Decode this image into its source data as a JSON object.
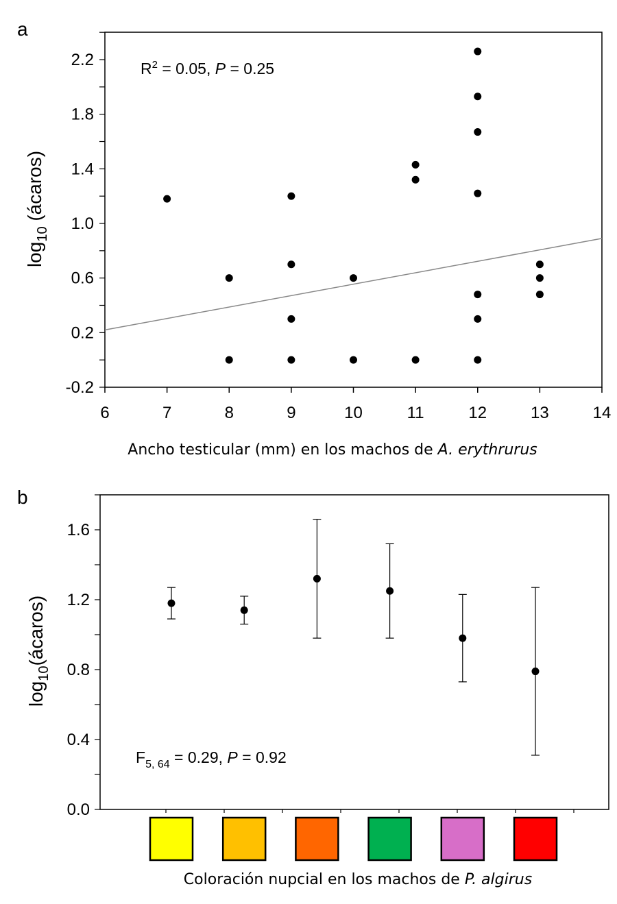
{
  "chart_data": [
    {
      "type": "scatter",
      "panel_label": "a",
      "xlabel": "Ancho testicular (mm) en los machos de ",
      "xlabel_italic": "A. erythrurus",
      "ylabel_main": "log",
      "ylabel_sub": "10",
      "ylabel_rest": " (ácaros)",
      "xlim": [
        6,
        14
      ],
      "ylim": [
        -0.2,
        2.4
      ],
      "xticks": [
        6,
        7,
        8,
        9,
        10,
        11,
        12,
        13,
        14
      ],
      "yticks": [
        "-0.2",
        "0.2",
        "0.6",
        "1.0",
        "1.4",
        "1.8",
        "2.2"
      ],
      "annotation": {
        "r2_prefix": "R",
        "r2_sup": "2",
        "r2_text": " = 0.05, ",
        "p_italic": "P",
        "p_text": " = 0.25"
      },
      "points": [
        [
          7,
          1.18
        ],
        [
          8,
          0.6
        ],
        [
          8,
          0.0
        ],
        [
          9,
          1.2
        ],
        [
          9,
          0.7
        ],
        [
          9,
          0.3
        ],
        [
          9,
          0.0
        ],
        [
          10,
          0.6
        ],
        [
          10,
          0.0
        ],
        [
          11,
          1.43
        ],
        [
          11,
          1.32
        ],
        [
          11,
          0.0
        ],
        [
          12,
          2.26
        ],
        [
          12,
          1.93
        ],
        [
          12,
          1.67
        ],
        [
          12,
          1.22
        ],
        [
          12,
          0.48
        ],
        [
          12,
          0.3
        ],
        [
          12,
          0.0
        ],
        [
          13,
          0.7
        ],
        [
          13,
          0.6
        ],
        [
          13,
          0.48
        ]
      ],
      "regression_line": [
        [
          6,
          0.22
        ],
        [
          14,
          0.89
        ]
      ]
    },
    {
      "type": "scatter",
      "panel_label": "b",
      "xlabel": "Coloración nupcial en los machos de ",
      "xlabel_italic": "P. algirus",
      "ylabel_main": "log",
      "ylabel_sub": "10",
      "ylabel_rest": "(ácaros)",
      "ylim": [
        0.0,
        1.8
      ],
      "yticks": [
        "0.0",
        "0.4",
        "0.8",
        "1.2",
        "1.6"
      ],
      "annotation": {
        "f_prefix": "F",
        "f_sub": "5, 64",
        "f_text": " = 0.29, ",
        "p_italic": "P",
        "p_text": " = 0.92"
      },
      "categories": [
        "#FFFF00",
        "#FFC000",
        "#FF6600",
        "#00B050",
        "#D76EC8",
        "#FF0000"
      ],
      "means": [
        1.18,
        1.14,
        1.32,
        1.25,
        0.98,
        0.79
      ],
      "upper": [
        1.27,
        1.22,
        1.66,
        1.52,
        1.23,
        1.27
      ],
      "lower": [
        1.09,
        1.06,
        0.98,
        0.98,
        0.73,
        0.31
      ]
    }
  ]
}
